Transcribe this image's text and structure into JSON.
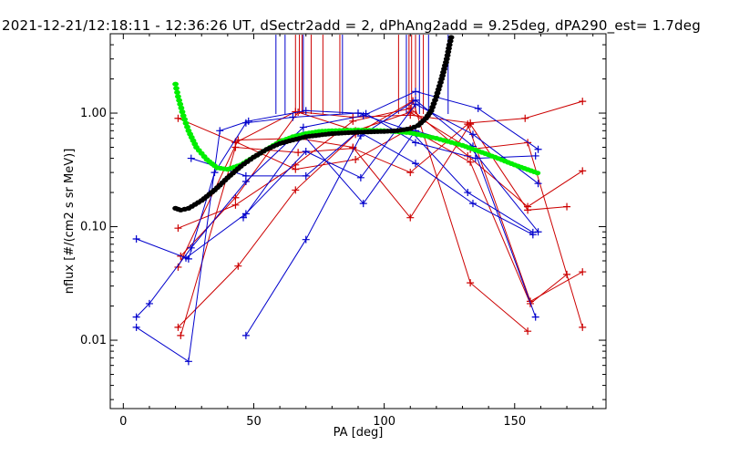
{
  "chart_data": {
    "type": "scatter",
    "title": "2021-12-21/12:18:11 - 12:36:26 UT, dSectr2add = 2, dPhAng2add = 9.25deg, dPA290_est=    1.7deg",
    "xlabel": "PA [deg]",
    "ylabel": "nflux [#/(cm2 s sr MeV)]",
    "xlim": [
      -5,
      185
    ],
    "ylim": [
      0.0025,
      5.0
    ],
    "yscale": "log",
    "x_ticks": [
      0,
      50,
      100,
      150
    ],
    "x_tick_labels": [
      "0",
      "50",
      "100",
      "150"
    ],
    "y_ticks": [
      0.01,
      0.1,
      1.0
    ],
    "y_tick_labels": [
      "0.01",
      "0.10",
      "1.00"
    ],
    "grid": false,
    "colors": {
      "blue": "#0000cc",
      "red": "#cc0000",
      "black": "#000000",
      "green": "#00ee00"
    },
    "blue_series": [
      [
        [
          5,
          0.078
        ],
        [
          25,
          0.052
        ],
        [
          35,
          0.3
        ],
        [
          47,
          0.82
        ],
        [
          65,
          0.92
        ],
        [
          90,
          1.0
        ],
        [
          110,
          0.7
        ],
        [
          132,
          0.2
        ],
        [
          157,
          0.089
        ]
      ],
      [
        [
          5,
          0.016
        ],
        [
          10,
          0.021
        ],
        [
          26,
          0.065
        ],
        [
          47,
          0.25
        ],
        [
          69,
          0.75
        ],
        [
          92,
          0.95
        ],
        [
          112,
          1.55
        ],
        [
          136,
          1.1
        ],
        [
          159,
          0.48
        ]
      ],
      [
        [
          5,
          0.013
        ],
        [
          25,
          0.0065
        ],
        [
          37,
          0.7
        ],
        [
          48,
          0.85
        ],
        [
          70,
          1.05
        ],
        [
          93,
          0.99
        ],
        [
          112,
          0.55
        ],
        [
          135,
          0.4
        ],
        [
          158,
          0.42
        ]
      ],
      [
        [
          24,
          0.053
        ],
        [
          47,
          0.13
        ],
        [
          70,
          0.46
        ],
        [
          91,
          0.27
        ],
        [
          112,
          1.2
        ],
        [
          134,
          0.65
        ],
        [
          159,
          0.24
        ]
      ],
      [
        [
          26,
          0.4
        ],
        [
          47,
          0.28
        ],
        [
          70,
          0.28
        ],
        [
          90,
          0.69
        ],
        [
          112,
          0.36
        ],
        [
          134,
          0.16
        ],
        [
          157,
          0.085
        ]
      ],
      [
        [
          47,
          0.011
        ],
        [
          70,
          0.077
        ],
        [
          91,
          0.63
        ],
        [
          112,
          1.3
        ],
        [
          134,
          0.51
        ],
        [
          158,
          0.016
        ]
      ],
      [
        [
          46,
          0.12
        ],
        [
          69,
          0.64
        ],
        [
          92,
          0.16
        ],
        [
          112,
          0.7
        ],
        [
          133,
          0.5
        ],
        [
          159,
          0.09
        ]
      ]
    ],
    "red_series": [
      [
        [
          21,
          0.9
        ],
        [
          43,
          0.55
        ],
        [
          66,
          1.03
        ],
        [
          88,
          0.92
        ],
        [
          110,
          0.96
        ],
        [
          133,
          0.82
        ],
        [
          154,
          0.9
        ],
        [
          176,
          1.27
        ]
      ],
      [
        [
          21,
          0.097
        ],
        [
          43,
          0.155
        ],
        [
          66,
          0.35
        ],
        [
          88,
          0.85
        ],
        [
          110,
          1.1
        ],
        [
          132,
          0.42
        ],
        [
          155,
          0.15
        ],
        [
          176,
          0.31
        ]
      ],
      [
        [
          21,
          0.044
        ],
        [
          44,
          0.58
        ],
        [
          67,
          0.6
        ],
        [
          88,
          0.5
        ],
        [
          110,
          0.12
        ],
        [
          133,
          0.8
        ],
        [
          155,
          0.14
        ],
        [
          170,
          0.15
        ]
      ],
      [
        [
          21,
          0.013
        ],
        [
          44,
          0.045
        ],
        [
          66,
          0.21
        ],
        [
          89,
          0.65
        ],
        [
          111,
          1.28
        ],
        [
          133,
          0.032
        ],
        [
          155,
          0.012
        ]
      ],
      [
        [
          22,
          0.011
        ],
        [
          43,
          0.5
        ],
        [
          67,
          0.45
        ],
        [
          88,
          0.49
        ],
        [
          110,
          0.3
        ],
        [
          132,
          0.8
        ],
        [
          156,
          0.022
        ],
        [
          176,
          0.04
        ]
      ],
      [
        [
          43,
          0.56
        ],
        [
          66,
          0.32
        ],
        [
          89,
          0.39
        ],
        [
          110,
          0.73
        ],
        [
          133,
          0.37
        ],
        [
          156,
          0.021
        ],
        [
          170,
          0.038
        ]
      ],
      [
        [
          22,
          0.055
        ],
        [
          43,
          0.18
        ],
        [
          67,
          1.02
        ],
        [
          89,
          0.7
        ],
        [
          110,
          1.02
        ],
        [
          133,
          0.48
        ],
        [
          155,
          0.55
        ],
        [
          176,
          0.013
        ]
      ]
    ],
    "black_series": {
      "x": [
        20,
        22,
        25,
        30,
        35,
        40,
        45,
        50,
        55,
        60,
        65,
        70,
        75,
        80,
        85,
        90,
        95,
        100,
        105,
        110,
        113,
        116,
        118,
        120,
        122,
        124,
        125,
        126
      ],
      "y": [
        0.145,
        0.14,
        0.145,
        0.17,
        0.21,
        0.27,
        0.34,
        0.41,
        0.48,
        0.54,
        0.58,
        0.62,
        0.64,
        0.66,
        0.67,
        0.68,
        0.685,
        0.69,
        0.7,
        0.73,
        0.78,
        0.9,
        1.05,
        1.4,
        2.0,
        3.0,
        4.0,
        5.0
      ]
    },
    "green_series": {
      "x": [
        20,
        21,
        23,
        25,
        28,
        32,
        36,
        40,
        45,
        50,
        55,
        60,
        65,
        70,
        75,
        80,
        90,
        100,
        110,
        120,
        130,
        140,
        150,
        160
      ],
      "y": [
        1.8,
        1.4,
        0.95,
        0.7,
        0.5,
        0.39,
        0.33,
        0.32,
        0.35,
        0.41,
        0.48,
        0.56,
        0.62,
        0.66,
        0.69,
        0.7,
        0.71,
        0.7,
        0.67,
        0.6,
        0.52,
        0.43,
        0.35,
        0.29
      ]
    },
    "vertical_lines": {
      "blue_x": [
        58.5,
        62,
        69,
        84,
        108.5,
        113.5,
        117,
        124.5
      ],
      "red_x": [
        66,
        67.5,
        68.5,
        72,
        76.5,
        83,
        105.5,
        109.5,
        110.5,
        112,
        115
      ]
    }
  }
}
